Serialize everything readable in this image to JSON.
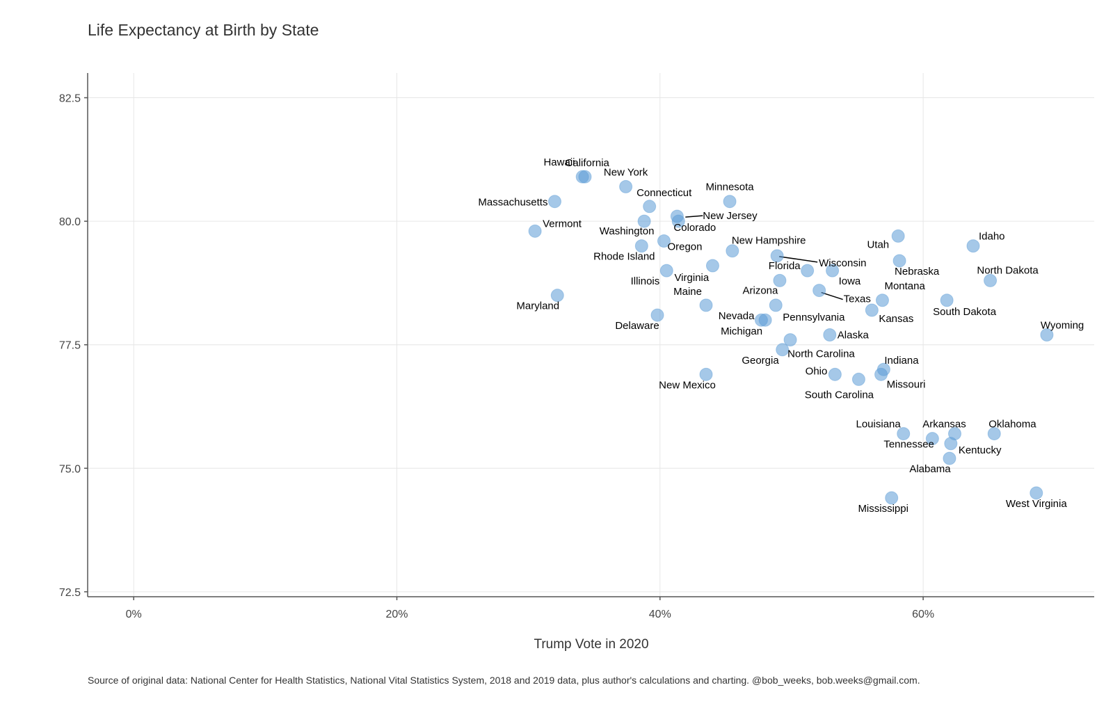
{
  "chart_data": {
    "type": "scatter",
    "title": "Life Expectancy at Birth by State",
    "xlabel": "Trump Vote in 2020",
    "ylabel": "",
    "caption": "Source of original data: National Center for Health Statistics, National Vital Statistics System, 2018 and 2019 data, plus author's calculations and charting. @bob_weeks, bob.weeks@gmail.com.",
    "xlim": [
      -0.035,
      0.73
    ],
    "ylim": [
      72.4,
      83.0
    ],
    "x_ticks": [
      0,
      0.2,
      0.4,
      0.6
    ],
    "x_tick_labels": [
      "0%",
      "20%",
      "40%",
      "60%"
    ],
    "y_ticks": [
      72.5,
      75.0,
      77.5,
      80.0,
      82.5
    ],
    "y_tick_labels": [
      "72.5",
      "75.0",
      "77.5",
      "80.0",
      "82.5"
    ],
    "grid": true,
    "point_color": "#5b9bd5",
    "points": [
      {
        "label": "California",
        "x": 0.341,
        "y": 80.9
      },
      {
        "label": "New York",
        "x": 0.374,
        "y": 80.7
      },
      {
        "label": "Hawaii",
        "x": 0.343,
        "y": 80.9
      },
      {
        "label": "Massachusetts",
        "x": 0.32,
        "y": 80.4
      },
      {
        "label": "Connecticut",
        "x": 0.392,
        "y": 80.3
      },
      {
        "label": "Minnesota",
        "x": 0.453,
        "y": 80.4
      },
      {
        "label": "New Jersey",
        "x": 0.414,
        "y": 80.0
      },
      {
        "label": "Vermont",
        "x": 0.305,
        "y": 79.8
      },
      {
        "label": "Washington",
        "x": 0.388,
        "y": 80.0
      },
      {
        "label": "Colorado",
        "x": 0.413,
        "y": 80.1
      },
      {
        "label": "Rhode Island",
        "x": 0.386,
        "y": 79.5
      },
      {
        "label": "Oregon",
        "x": 0.403,
        "y": 79.6
      },
      {
        "label": "New Hampshire",
        "x": 0.455,
        "y": 79.4
      },
      {
        "label": "Utah",
        "x": 0.581,
        "y": 79.7
      },
      {
        "label": "Idaho",
        "x": 0.638,
        "y": 79.5
      },
      {
        "label": "Wisconsin",
        "x": 0.489,
        "y": 79.3
      },
      {
        "label": "Florida",
        "x": 0.512,
        "y": 79.0
      },
      {
        "label": "Nebraska",
        "x": 0.582,
        "y": 79.2
      },
      {
        "label": "Virginia",
        "x": 0.44,
        "y": 79.1
      },
      {
        "label": "Illinois",
        "x": 0.405,
        "y": 79.0
      },
      {
        "label": "Iowa",
        "x": 0.531,
        "y": 79.0
      },
      {
        "label": "North Dakota",
        "x": 0.651,
        "y": 78.8
      },
      {
        "label": "Arizona",
        "x": 0.491,
        "y": 78.8
      },
      {
        "label": "Texas",
        "x": 0.521,
        "y": 78.6
      },
      {
        "label": "Montana",
        "x": 0.569,
        "y": 78.4
      },
      {
        "label": "Maryland",
        "x": 0.322,
        "y": 78.5
      },
      {
        "label": "Maine",
        "x": 0.435,
        "y": 78.3
      },
      {
        "label": "Pennsylvania",
        "x": 0.488,
        "y": 78.3
      },
      {
        "label": "South Dakota",
        "x": 0.618,
        "y": 78.4
      },
      {
        "label": "Kansas",
        "x": 0.561,
        "y": 78.2
      },
      {
        "label": "Delaware",
        "x": 0.398,
        "y": 78.1
      },
      {
        "label": "Nevada",
        "x": 0.477,
        "y": 78.0
      },
      {
        "label": "Michigan",
        "x": 0.48,
        "y": 78.0
      },
      {
        "label": "Alaska",
        "x": 0.529,
        "y": 77.7
      },
      {
        "label": "Wyoming",
        "x": 0.694,
        "y": 77.7
      },
      {
        "label": "North Carolina",
        "x": 0.499,
        "y": 77.6
      },
      {
        "label": "Georgia",
        "x": 0.493,
        "y": 77.4
      },
      {
        "label": "Indiana",
        "x": 0.57,
        "y": 77.0
      },
      {
        "label": "Ohio",
        "x": 0.533,
        "y": 76.9
      },
      {
        "label": "New Mexico",
        "x": 0.435,
        "y": 76.9
      },
      {
        "label": "South Carolina",
        "x": 0.551,
        "y": 76.8
      },
      {
        "label": "Missouri",
        "x": 0.568,
        "y": 76.9
      },
      {
        "label": "Louisiana",
        "x": 0.585,
        "y": 75.7
      },
      {
        "label": "Arkansas",
        "x": 0.624,
        "y": 75.7
      },
      {
        "label": "Oklahoma",
        "x": 0.654,
        "y": 75.7
      },
      {
        "label": "Tennessee",
        "x": 0.607,
        "y": 75.6
      },
      {
        "label": "Kentucky",
        "x": 0.621,
        "y": 75.5
      },
      {
        "label": "Alabama",
        "x": 0.62,
        "y": 75.2
      },
      {
        "label": "West Virginia",
        "x": 0.686,
        "y": 74.5
      },
      {
        "label": "Mississippi",
        "x": 0.576,
        "y": 74.4
      }
    ]
  }
}
